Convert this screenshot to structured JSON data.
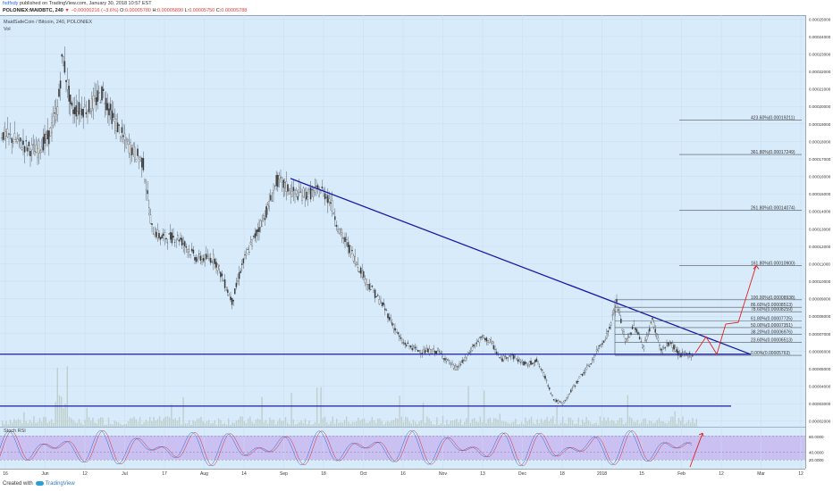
{
  "header": {
    "author": "fxdfxdy",
    "published_text": "published on TradingView.com, January 30, 2018 10:57 EST",
    "symbol": "POLONIEX:MAIDBTC, 240",
    "change": "▼ −0.00000216 (−3.6%)",
    "ohlc": [
      {
        "label": "O:",
        "value": "0.00005780"
      },
      {
        "label": "H:",
        "value": "0.00005890"
      },
      {
        "label": "L:",
        "value": "0.00005750"
      },
      {
        "label": "C:",
        "value": "0.00005788"
      }
    ]
  },
  "legend": {
    "title": "MaidSafeCoin / Bitcoin, 240, POLONIEX",
    "vol_label": "Vol",
    "stoch_label": "Stoch RSI"
  },
  "footer": {
    "created_with": "Created with",
    "brand": "TradingView"
  },
  "chart_data": {
    "type": "line",
    "y_axis_labels": [
      "0.00025000",
      "0.00024000",
      "0.00023000",
      "0.00022000",
      "0.00021000",
      "0.00020000",
      "0.00019000",
      "0.00018000",
      "0.00017000",
      "0.00016000",
      "0.00015000",
      "0.00014000",
      "0.00013000",
      "0.00012000",
      "0.00011000",
      "0.00010000",
      "0.00009000",
      "0.00008000",
      "0.00007000",
      "0.00006000",
      "0.00005000",
      "0.00004000",
      "0.00003000",
      "0.00002000"
    ],
    "ylim": [
      1.68e-05,
      0.0002522
    ],
    "x_axis_labels": [
      "16",
      "Jun",
      "12",
      "Jul",
      "17",
      "Aug",
      "14",
      "Sep",
      "18",
      "Oct",
      "16",
      "Nov",
      "13",
      "Dec",
      "18",
      "2018",
      "15",
      "Feb",
      "12",
      "Mar",
      "12"
    ],
    "price_x": [
      0,
      20,
      40,
      55,
      65,
      70,
      80,
      100,
      115,
      125,
      140,
      160,
      170,
      180,
      200,
      220,
      240,
      260,
      270,
      280,
      300,
      310,
      330,
      345,
      360,
      370,
      380,
      390,
      410,
      430,
      450,
      470,
      490,
      510,
      520,
      530,
      540,
      550,
      560,
      570,
      580,
      590,
      600,
      610,
      620,
      630,
      640,
      650,
      660,
      670,
      680,
      690,
      700,
      710,
      720,
      730,
      740,
      750,
      760,
      770
    ],
    "price_y": [
      0.000185,
      0.00018,
      0.000174,
      0.000183,
      0.0002,
      0.00023,
      0.000198,
      0.000199,
      0.000208,
      0.000195,
      0.00018,
      0.000168,
      0.00013,
      0.000125,
      0.000125,
      0.000113,
      0.000113,
      8.8e-05,
      0.000108,
      0.00012,
      0.000142,
      0.000158,
      0.00015,
      0.00015,
      0.000152,
      0.000146,
      0.000128,
      0.00012,
      0.0001,
      8.5e-05,
      6.5e-05,
      6e-05,
      6e-05,
      5e-05,
      5.5e-05,
      6.3e-05,
      6.8e-05,
      6.5e-05,
      5.5e-05,
      5.8e-05,
      5.5e-05,
      5.2e-05,
      5.5e-05,
      4.5e-05,
      3.2e-05,
      3e-05,
      3.8e-05,
      4.6e-05,
      5.2e-05,
      6.2e-05,
      7e-05,
      8.8e-05,
      6.5e-05,
      7.5e-05,
      6.2e-05,
      7.8e-05,
      6e-05,
      6.5e-05,
      5.8e-05,
      5.8e-05
    ],
    "fib_levels": [
      {
        "label": "423.60%(0.00019211)",
        "y": 0.00019211
      },
      {
        "label": "361.80%(0.00017249)",
        "y": 0.00017249
      },
      {
        "label": "261.80%(0.00014074)",
        "y": 0.00014074
      },
      {
        "label": "161.80%(0.00010900)",
        "y": 0.000109
      },
      {
        "label": "100.00%(0.00008938)",
        "y": 8.938e-05
      },
      {
        "label": "86.60%(0.00008513)",
        "y": 8.513e-05
      },
      {
        "label": "78.60%(0.00008259)",
        "y": 8.259e-05
      },
      {
        "label": "61.80%(0.00007725)",
        "y": 7.725e-05
      },
      {
        "label": "50.00%(0.00007351)",
        "y": 7.351e-05
      },
      {
        "label": "38.20%(0.00006976)",
        "y": 6.976e-05
      },
      {
        "label": "23.60%(0.00006513)",
        "y": 6.513e-05
      },
      {
        "label": "0.00%(0.00005763)",
        "y": 5.763e-05
      }
    ],
    "trendline": {
      "x": [
        325,
        840
      ],
      "y": [
        0.0001588,
        5.82e-05
      ]
    },
    "support_lines": [
      {
        "x": [
          0,
          840
        ],
        "y": 5.83e-05
      },
      {
        "x": [
          0,
          818
        ],
        "y": 2.86e-05
      }
    ],
    "projection_path": {
      "x": [
        778,
        790,
        802,
        812,
        826,
        846
      ],
      "y": [
        5.9e-05,
        6.82e-05,
        5.83e-05,
        7.55e-05,
        7.65e-05,
        0.000109
      ]
    },
    "stoch_levels": [
      "80.0000",
      "40.0000",
      "20.0000"
    ],
    "stoch_ylim": [
      0,
      100
    ]
  }
}
